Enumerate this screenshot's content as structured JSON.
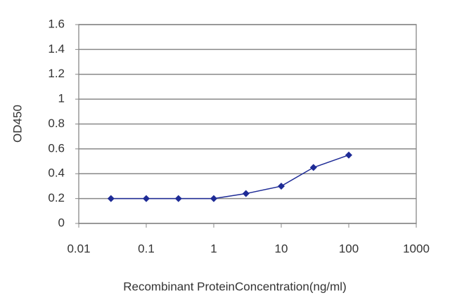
{
  "chart_data": {
    "type": "line",
    "x_label": "Recombinant ProteinConcentration(ng/ml)",
    "y_label": "OD450",
    "x": [
      0.03,
      0.1,
      0.3,
      1,
      3,
      10,
      30,
      100
    ],
    "series": [
      {
        "color": "#1e2b96",
        "values": [
          0.2,
          0.2,
          0.2,
          0.2,
          0.24,
          0.3,
          0.45,
          0.55
        ]
      }
    ],
    "xlim": [
      0.01,
      1000
    ],
    "xticks": [
      0.01,
      0.1,
      1,
      10,
      100,
      1000
    ],
    "xscale": "log",
    "ylim": [
      0,
      1.6
    ],
    "yticks": [
      0,
      0.2,
      0.4,
      0.6,
      0.8,
      1,
      1.2,
      1.4,
      1.6
    ],
    "grid": true
  }
}
